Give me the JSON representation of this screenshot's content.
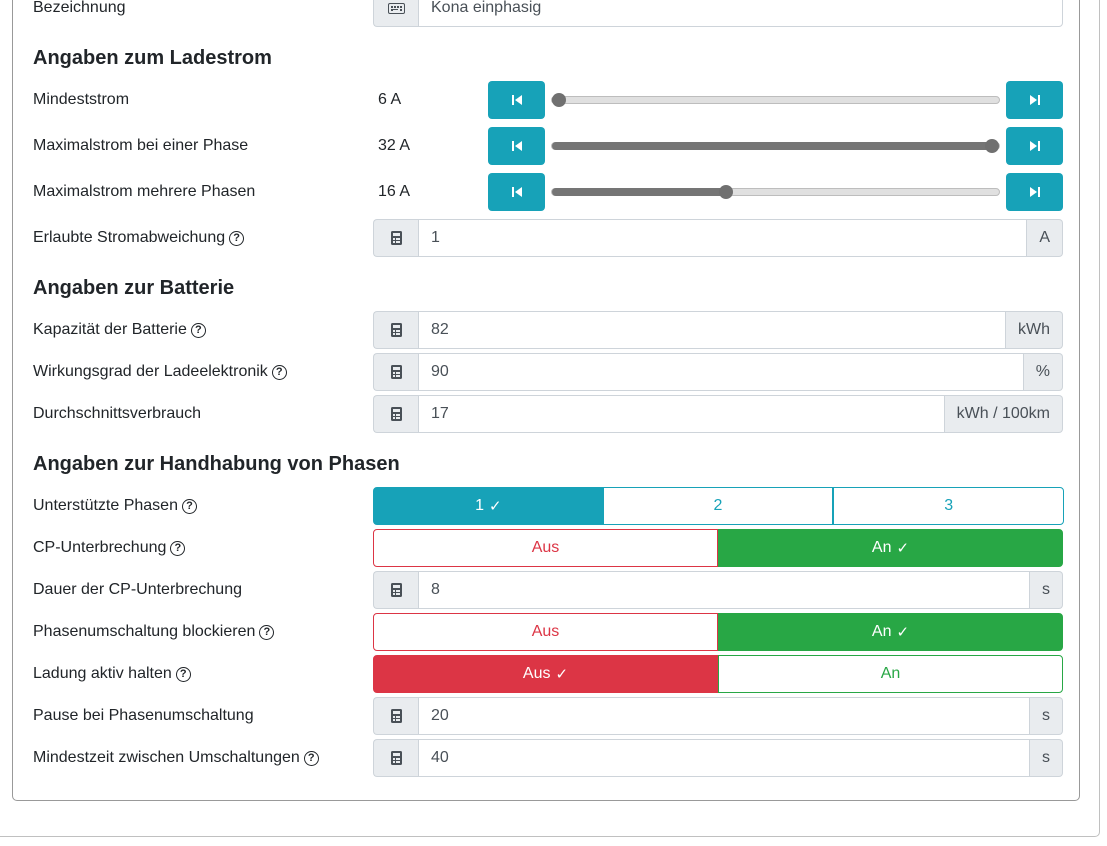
{
  "bezeichnung": {
    "label": "Bezeichnung",
    "value": "Kona einphasig",
    "icon": "keyboard-icon"
  },
  "ladestrom": {
    "heading": "Angaben zum Ladestrom",
    "min": {
      "label": "Mindeststrom",
      "value": "6 A",
      "fraction": 0.0
    },
    "max_one": {
      "label": "Maximalstrom bei einer Phase",
      "value": "32 A",
      "fraction": 1.0
    },
    "max_multi": {
      "label": "Maximalstrom mehrere Phasen",
      "value": "16 A",
      "fraction": 0.3846
    },
    "deviation": {
      "label": "Erlaubte Stromabweichung",
      "value": "1",
      "unit": "A"
    }
  },
  "batterie": {
    "heading": "Angaben zur Batterie",
    "capacity": {
      "label": "Kapazität der Batterie",
      "value": "82",
      "unit": "kWh"
    },
    "efficiency": {
      "label": "Wirkungsgrad der Ladeelektronik",
      "value": "90",
      "unit": "%"
    },
    "consumption": {
      "label": "Durchschnittsverbrauch",
      "value": "17",
      "unit": "kWh / 100km"
    }
  },
  "phasen": {
    "heading": "Angaben zur Handhabung von Phasen",
    "supported": {
      "label": "Unterstützte Phasen",
      "options": [
        "1",
        "2",
        "3"
      ],
      "selected": "1"
    },
    "cp_interrupt": {
      "label": "CP-Unterbrechung",
      "off": "Aus",
      "on": "An",
      "state": "An"
    },
    "cp_duration": {
      "label": "Dauer der CP-Unterbrechung",
      "value": "8",
      "unit": "s"
    },
    "block_switch": {
      "label": "Phasenumschaltung blockieren",
      "off": "Aus",
      "on": "An",
      "state": "An"
    },
    "keep_active": {
      "label": "Ladung aktiv halten",
      "off": "Aus",
      "on": "An",
      "state": "Aus"
    },
    "pause": {
      "label": "Pause bei Phasenumschaltung",
      "value": "20",
      "unit": "s"
    },
    "min_time": {
      "label": "Mindestzeit zwischen Umschaltungen",
      "value": "40",
      "unit": "s"
    }
  },
  "help_glyph": "?",
  "check_glyph": "✓",
  "colors": {
    "info": "#17a2b8",
    "success": "#28a745",
    "danger": "#dc3545"
  }
}
